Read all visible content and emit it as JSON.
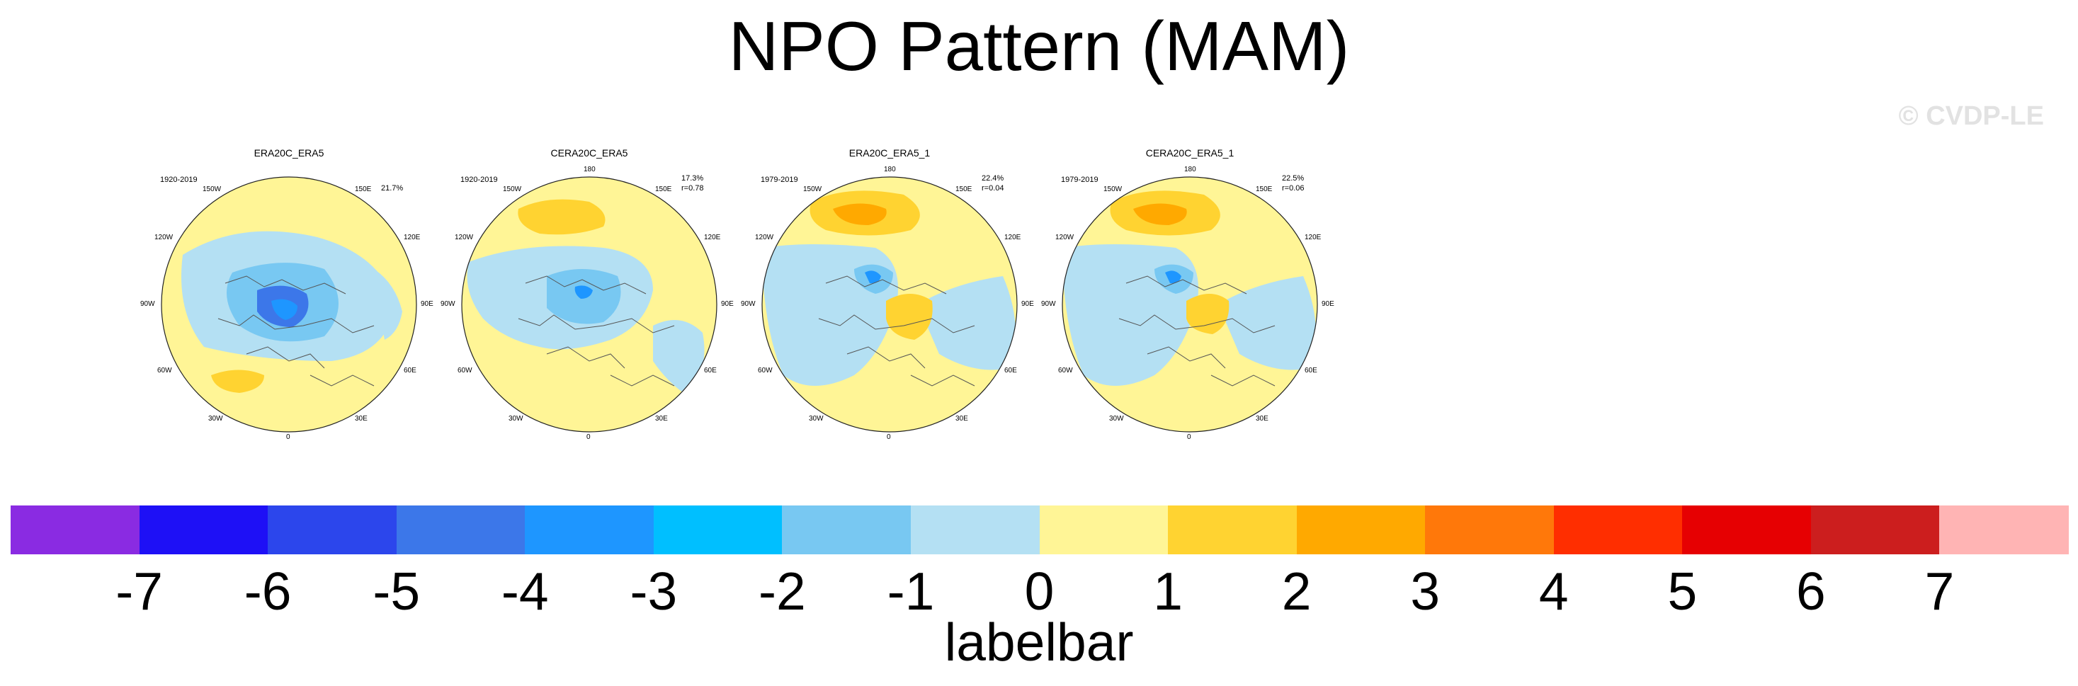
{
  "figure": {
    "title": "NPO Pattern (MAM)",
    "watermark": "© CVDP-LE"
  },
  "colorbar": {
    "colors": [
      "#8a2be2",
      "#1e10f6",
      "#2c46ec",
      "#3c77e9",
      "#1e96ff",
      "#00bfff",
      "#78c8f2",
      "#b4e0f3",
      "#fff596",
      "#ffd331",
      "#ffa900",
      "#ff780a",
      "#ff2e00",
      "#e60002",
      "#cc1e1e",
      "#ffb4b4"
    ],
    "ticks": [
      "-7",
      "-6",
      "-5",
      "-4",
      "-3",
      "-2",
      "-1",
      "0",
      "1",
      "2",
      "3",
      "4",
      "5",
      "6",
      "7"
    ],
    "title": "labelbar"
  },
  "lon_labels": [
    "180",
    "150E",
    "120E",
    "90E",
    "60E",
    "30E",
    "0",
    "30W",
    "60W",
    "90W",
    "120W",
    "150W"
  ],
  "panels": [
    {
      "title": "ERA20C_ERA5",
      "years": "1920-2019",
      "pct": "21.7%",
      "r": ""
    },
    {
      "title": "CERA20C_ERA5",
      "years": "1920-2019",
      "pct": "17.3%",
      "r": "r=0.78"
    },
    {
      "title": "ERA20C_ERA5_1",
      "years": "1979-2019",
      "pct": "22.4%",
      "r": "r=0.04"
    },
    {
      "title": "CERA20C_ERA5_1",
      "years": "1979-2019",
      "pct": "22.5%",
      "r": "r=0.06"
    }
  ]
}
